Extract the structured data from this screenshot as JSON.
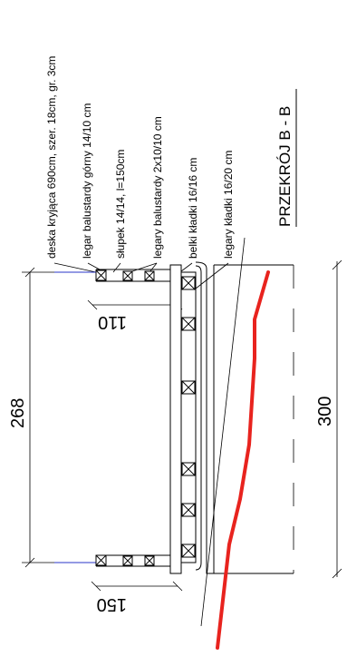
{
  "title": "PRZEKRÓJ B - B",
  "labels": [
    "deska kryjąca 690cm, szer. 18cm, gr. 3cm",
    "legar balustardy górny 14/10 cm",
    "słupek 14/14, l=150cm",
    "legary balustardy  2x10/10 cm",
    "belki  kładki 16/16 cm",
    "legary  kładki 16/20 cm"
  ],
  "dimensions": {
    "width_top": "268",
    "width_bottom": "300",
    "height_left": "150",
    "height_right": "110"
  },
  "colors": {
    "terrain": "#e8231e",
    "guide": "#2a35c8",
    "ink": "#000000"
  }
}
